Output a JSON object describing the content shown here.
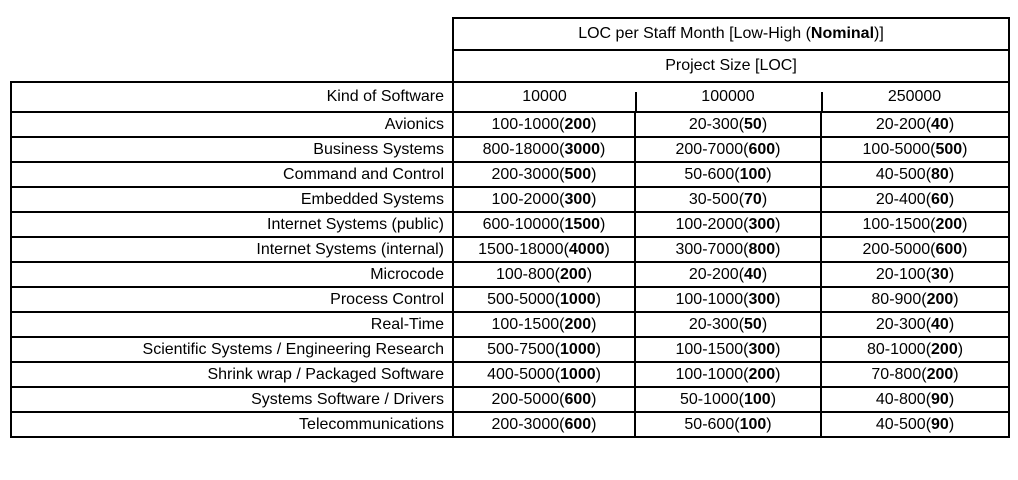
{
  "page": {
    "background_color": "#ffffff",
    "text_color": "#000000",
    "border_color": "#000000"
  },
  "table": {
    "title": {
      "prefix": "LOC per Staff Month [Low-High (",
      "bold": "Nominal",
      "suffix": ")]"
    },
    "subtitle": "Project Size [LOC]",
    "row_header_label": "Kind of Software",
    "size_columns": [
      "10000",
      "100000",
      "250000"
    ],
    "rows": [
      {
        "label": "Avionics",
        "cells": [
          {
            "range": "100-1000",
            "nominal": "200"
          },
          {
            "range": "20-300",
            "nominal": "50"
          },
          {
            "range": "20-200",
            "nominal": "40"
          }
        ]
      },
      {
        "label": "Business Systems",
        "cells": [
          {
            "range": "800-18000",
            "nominal": "3000"
          },
          {
            "range": "200-7000",
            "nominal": "600"
          },
          {
            "range": "100-5000",
            "nominal": "500"
          }
        ]
      },
      {
        "label": "Command and Control",
        "cells": [
          {
            "range": "200-3000",
            "nominal": "500"
          },
          {
            "range": "50-600",
            "nominal": "100"
          },
          {
            "range": "40-500",
            "nominal": "80"
          }
        ]
      },
      {
        "label": "Embedded Systems",
        "cells": [
          {
            "range": "100-2000",
            "nominal": "300"
          },
          {
            "range": "30-500",
            "nominal": "70"
          },
          {
            "range": "20-400",
            "nominal": "60"
          }
        ]
      },
      {
        "label": "Internet Systems (public)",
        "cells": [
          {
            "range": "600-10000",
            "nominal": "1500"
          },
          {
            "range": "100-2000",
            "nominal": "300"
          },
          {
            "range": "100-1500",
            "nominal": "200"
          }
        ]
      },
      {
        "label": "Internet Systems (internal)",
        "cells": [
          {
            "range": "1500-18000",
            "nominal": "4000"
          },
          {
            "range": "300-7000",
            "nominal": "800"
          },
          {
            "range": "200-5000",
            "nominal": "600"
          }
        ]
      },
      {
        "label": "Microcode",
        "cells": [
          {
            "range": "100-800",
            "nominal": "200"
          },
          {
            "range": "20-200",
            "nominal": "40"
          },
          {
            "range": "20-100",
            "nominal": "30"
          }
        ]
      },
      {
        "label": "Process Control",
        "cells": [
          {
            "range": "500-5000",
            "nominal": "1000"
          },
          {
            "range": "100-1000",
            "nominal": "300"
          },
          {
            "range": "80-900",
            "nominal": "200"
          }
        ]
      },
      {
        "label": "Real-Time",
        "cells": [
          {
            "range": "100-1500",
            "nominal": "200"
          },
          {
            "range": "20-300",
            "nominal": "50"
          },
          {
            "range": "20-300",
            "nominal": "40"
          }
        ]
      },
      {
        "label": "Scientific Systems / Engineering Research",
        "cells": [
          {
            "range": "500-7500",
            "nominal": "1000"
          },
          {
            "range": "100-1500",
            "nominal": "300"
          },
          {
            "range": "80-1000",
            "nominal": "200"
          }
        ]
      },
      {
        "label": "Shrink wrap / Packaged Software",
        "cells": [
          {
            "range": "400-5000",
            "nominal": "1000"
          },
          {
            "range": "100-1000",
            "nominal": "200"
          },
          {
            "range": "70-800",
            "nominal": "200"
          }
        ]
      },
      {
        "label": "Systems Software / Drivers",
        "cells": [
          {
            "range": "200-5000",
            "nominal": "600"
          },
          {
            "range": "50-1000",
            "nominal": "100"
          },
          {
            "range": "40-800",
            "nominal": "90"
          }
        ]
      },
      {
        "label": "Telecommunications",
        "cells": [
          {
            "range": "200-3000",
            "nominal": "600"
          },
          {
            "range": "50-600",
            "nominal": "100"
          },
          {
            "range": "40-500",
            "nominal": "90"
          }
        ]
      }
    ]
  }
}
